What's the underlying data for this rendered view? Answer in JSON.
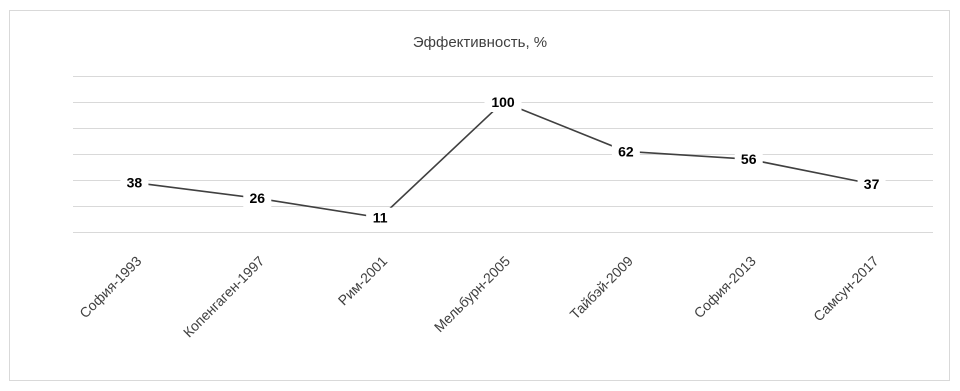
{
  "chart_data": {
    "type": "line",
    "title": "Эффективность, %",
    "categories": [
      "София-1993",
      "Копенгаген-1997",
      "Рим-2001",
      "Мельбурн-2005",
      "Тайбэй-2009",
      "София-2013",
      "Самсун-2017"
    ],
    "series": [
      {
        "values": [
          38,
          26,
          11,
          100,
          62,
          56,
          37
        ]
      }
    ],
    "ylim": [
      0,
      120
    ],
    "grid": true,
    "legend": "none",
    "colors": {
      "line": "#404040",
      "grid": "#d9d9d9",
      "label_bg": "#ffffff"
    }
  }
}
